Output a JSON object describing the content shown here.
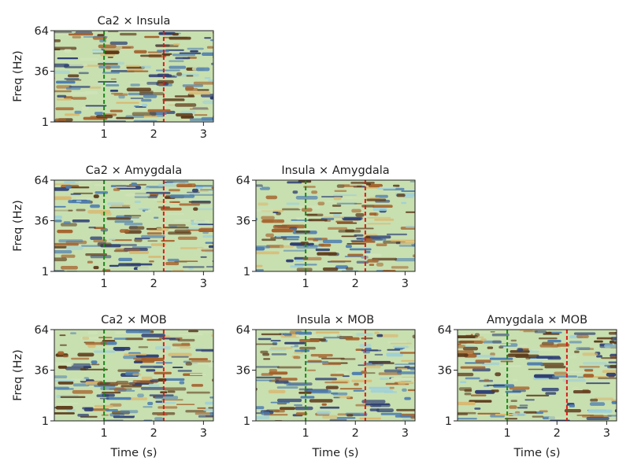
{
  "figure": {
    "layout_rows": 3,
    "layout_cols": 3,
    "shared_ylabel": "Freq (Hz)",
    "shared_xlabel": "Time (s)"
  },
  "chart_data": [
    {
      "type": "heatmap",
      "title": "Ca2 × Insula",
      "row": 0,
      "col": 0,
      "xlabel": "",
      "ylabel": "Freq (Hz)",
      "xlim": [
        0,
        3.2
      ],
      "ylim": [
        1,
        64
      ],
      "xticks": [
        1,
        2,
        3
      ],
      "yticks": [
        1,
        36,
        64
      ],
      "markers": [
        {
          "x": 1.0,
          "color": "#1a8a1a",
          "style": "dashed"
        },
        {
          "x": 2.2,
          "color": "#e01818",
          "style": "dashed"
        }
      ],
      "seed": 11
    },
    {
      "type": "heatmap",
      "title": "Ca2 × Amygdala",
      "row": 1,
      "col": 0,
      "xlabel": "",
      "ylabel": "Freq (Hz)",
      "xlim": [
        0,
        3.2
      ],
      "ylim": [
        1,
        64
      ],
      "xticks": [
        1,
        2,
        3
      ],
      "yticks": [
        1,
        36,
        64
      ],
      "markers": [
        {
          "x": 1.0,
          "color": "#1a8a1a",
          "style": "dashed"
        },
        {
          "x": 2.2,
          "color": "#e01818",
          "style": "dashed"
        }
      ],
      "seed": 23
    },
    {
      "type": "heatmap",
      "title": "Insula × Amygdala",
      "row": 1,
      "col": 1,
      "xlabel": "",
      "ylabel": "",
      "xlim": [
        0,
        3.2
      ],
      "ylim": [
        1,
        64
      ],
      "xticks": [
        1,
        2,
        3
      ],
      "yticks": [
        1,
        36,
        64
      ],
      "markers": [
        {
          "x": 1.0,
          "color": "#1a8a1a",
          "style": "dashed"
        },
        {
          "x": 2.2,
          "color": "#e01818",
          "style": "dashed"
        }
      ],
      "seed": 37
    },
    {
      "type": "heatmap",
      "title": "Ca2 × MOB",
      "row": 2,
      "col": 0,
      "xlabel": "Time (s)",
      "ylabel": "Freq (Hz)",
      "xlim": [
        0,
        3.2
      ],
      "ylim": [
        1,
        64
      ],
      "xticks": [
        1,
        2,
        3
      ],
      "yticks": [
        1,
        36,
        64
      ],
      "markers": [
        {
          "x": 1.0,
          "color": "#1a8a1a",
          "style": "dashed"
        },
        {
          "x": 2.2,
          "color": "#e01818",
          "style": "dashed"
        }
      ],
      "seed": 41
    },
    {
      "type": "heatmap",
      "title": "Insula × MOB",
      "row": 2,
      "col": 1,
      "xlabel": "Time (s)",
      "ylabel": "",
      "xlim": [
        0,
        3.2
      ],
      "ylim": [
        1,
        64
      ],
      "xticks": [
        1,
        2,
        3
      ],
      "yticks": [
        1,
        36,
        64
      ],
      "markers": [
        {
          "x": 1.0,
          "color": "#1a8a1a",
          "style": "dashed"
        },
        {
          "x": 2.2,
          "color": "#e01818",
          "style": "dashed"
        }
      ],
      "seed": 53
    },
    {
      "type": "heatmap",
      "title": "Amygdala × MOB",
      "row": 2,
      "col": 2,
      "xlabel": "Time (s)",
      "ylabel": "",
      "xlim": [
        0,
        3.2
      ],
      "ylim": [
        1,
        64
      ],
      "xticks": [
        1,
        2,
        3
      ],
      "yticks": [
        1,
        36,
        64
      ],
      "markers": [
        {
          "x": 1.0,
          "color": "#1a8a1a",
          "style": "dashed"
        },
        {
          "x": 2.2,
          "color": "#e01818",
          "style": "dashed"
        }
      ],
      "seed": 67
    }
  ],
  "colormap": [
    "#5d3a1a",
    "#a5602a",
    "#d9b870",
    "#cfe3b8",
    "#9fd0d8",
    "#4f7fb0",
    "#2e3f73"
  ]
}
